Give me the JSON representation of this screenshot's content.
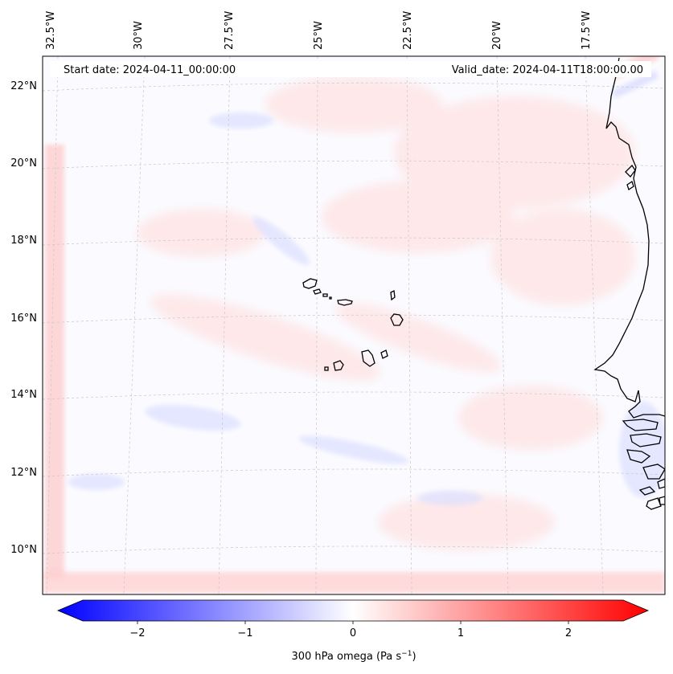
{
  "map": {
    "header": {
      "start_date": "Start date: 2024-04-11_00:00:00",
      "valid_date": "Valid_date: 2024-04-11T18:00:00.00"
    },
    "longitude_labels": [
      "32.5°W",
      "30°W",
      "27.5°W",
      "25°W",
      "22.5°W",
      "20°W",
      "17.5°W"
    ],
    "latitude_labels": [
      "22°N",
      "20°N",
      "18°N",
      "16°N",
      "14°N",
      "12°N",
      "10°N"
    ],
    "features": [
      "Cape Verde islands",
      "West African coastline"
    ],
    "field_colors": {
      "positive": "#ff0000",
      "negative": "#0000ff",
      "neutral": "#ffffff"
    }
  },
  "colorbar": {
    "ticks": [
      "−2",
      "−1",
      "0",
      "1",
      "2"
    ],
    "label_prefix": "300 hPa omega (Pa s",
    "label_exponent": "−1",
    "label_suffix": ")",
    "range": [
      -2.6,
      2.6
    ],
    "colormap": "bwr"
  }
}
